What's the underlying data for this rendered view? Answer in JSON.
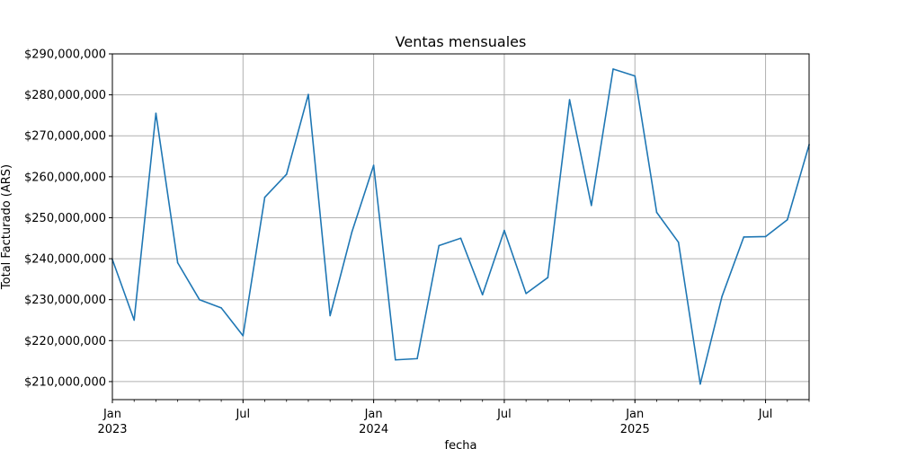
{
  "chart_data": {
    "type": "line",
    "title": "Ventas mensuales",
    "xlabel": "fecha",
    "ylabel": "Total Facturado (ARS)",
    "ylim": [
      205600000,
      290000000
    ],
    "xlim": [
      "2023-01",
      "2025-09"
    ],
    "grid": true,
    "colors": {
      "line": "#1f77b4",
      "grid": "#b0b0b0",
      "axis": "#000000"
    },
    "y_ticks": [
      210000000,
      220000000,
      230000000,
      240000000,
      250000000,
      260000000,
      270000000,
      280000000,
      290000000
    ],
    "y_tick_labels": [
      "$210,000,000",
      "$220,000,000",
      "$230,000,000",
      "$240,000,000",
      "$250,000,000",
      "$260,000,000",
      "$270,000,000",
      "$280,000,000",
      "$290,000,000"
    ],
    "x_major_ticks": [
      {
        "date": "2023-01",
        "label": "Jan",
        "year": "2023"
      },
      {
        "date": "2023-07",
        "label": "Jul",
        "year": ""
      },
      {
        "date": "2024-01",
        "label": "Jan",
        "year": "2024"
      },
      {
        "date": "2024-07",
        "label": "Jul",
        "year": ""
      },
      {
        "date": "2025-01",
        "label": "Jan",
        "year": "2025"
      },
      {
        "date": "2025-07",
        "label": "Jul",
        "year": ""
      }
    ],
    "x": [
      "2023-01",
      "2023-02",
      "2023-03",
      "2023-04",
      "2023-05",
      "2023-06",
      "2023-07",
      "2023-08",
      "2023-09",
      "2023-10",
      "2023-11",
      "2023-12",
      "2024-01",
      "2024-02",
      "2024-03",
      "2024-04",
      "2024-05",
      "2024-06",
      "2024-07",
      "2024-08",
      "2024-09",
      "2024-10",
      "2024-11",
      "2024-12",
      "2025-01",
      "2025-02",
      "2025-03",
      "2025-04",
      "2025-05",
      "2025-06",
      "2025-07",
      "2025-08",
      "2025-09"
    ],
    "series": [
      {
        "values": [
          239800000,
          225000000,
          275500000,
          239000000,
          230000000,
          228000000,
          221200000,
          255000000,
          260600000,
          280100000,
          226100000,
          246500000,
          262800000,
          215300000,
          215600000,
          243200000,
          245000000,
          231200000,
          246900000,
          231500000,
          235400000,
          278800000,
          253000000,
          286300000,
          284600000,
          251300000,
          244000000,
          209400000,
          230800000,
          245300000,
          245400000,
          249500000,
          267800000
        ]
      }
    ]
  }
}
